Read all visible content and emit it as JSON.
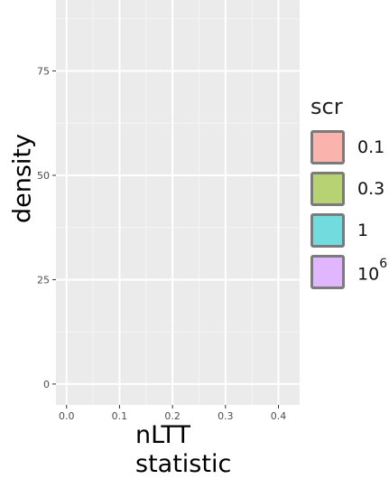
{
  "chart_data": {
    "type": "area",
    "title": "",
    "xlabel": "nLTT statistic",
    "ylabel": "density",
    "xlim": [
      -0.02,
      0.44
    ],
    "ylim": [
      -5,
      92
    ],
    "xticks": [
      0.0,
      0.1,
      0.2,
      0.3,
      0.4
    ],
    "xtick_labels": [
      "0.0",
      "0.1",
      "0.2",
      "0.3",
      "0.4"
    ],
    "yticks": [
      0,
      25,
      50,
      75
    ],
    "ytick_labels": [
      "0",
      "25",
      "50",
      "75"
    ],
    "grid": true,
    "legend_position": "right",
    "legend": {
      "title": "scr",
      "entries": [
        {
          "label": "0.1",
          "color": "#F8766D"
        },
        {
          "label": "0.3",
          "color": "#7CAE00"
        },
        {
          "label": "1",
          "color": "#00BFC4"
        },
        {
          "label": "10",
          "sup": "6",
          "color": "#C77CFF"
        }
      ]
    },
    "series": []
  }
}
